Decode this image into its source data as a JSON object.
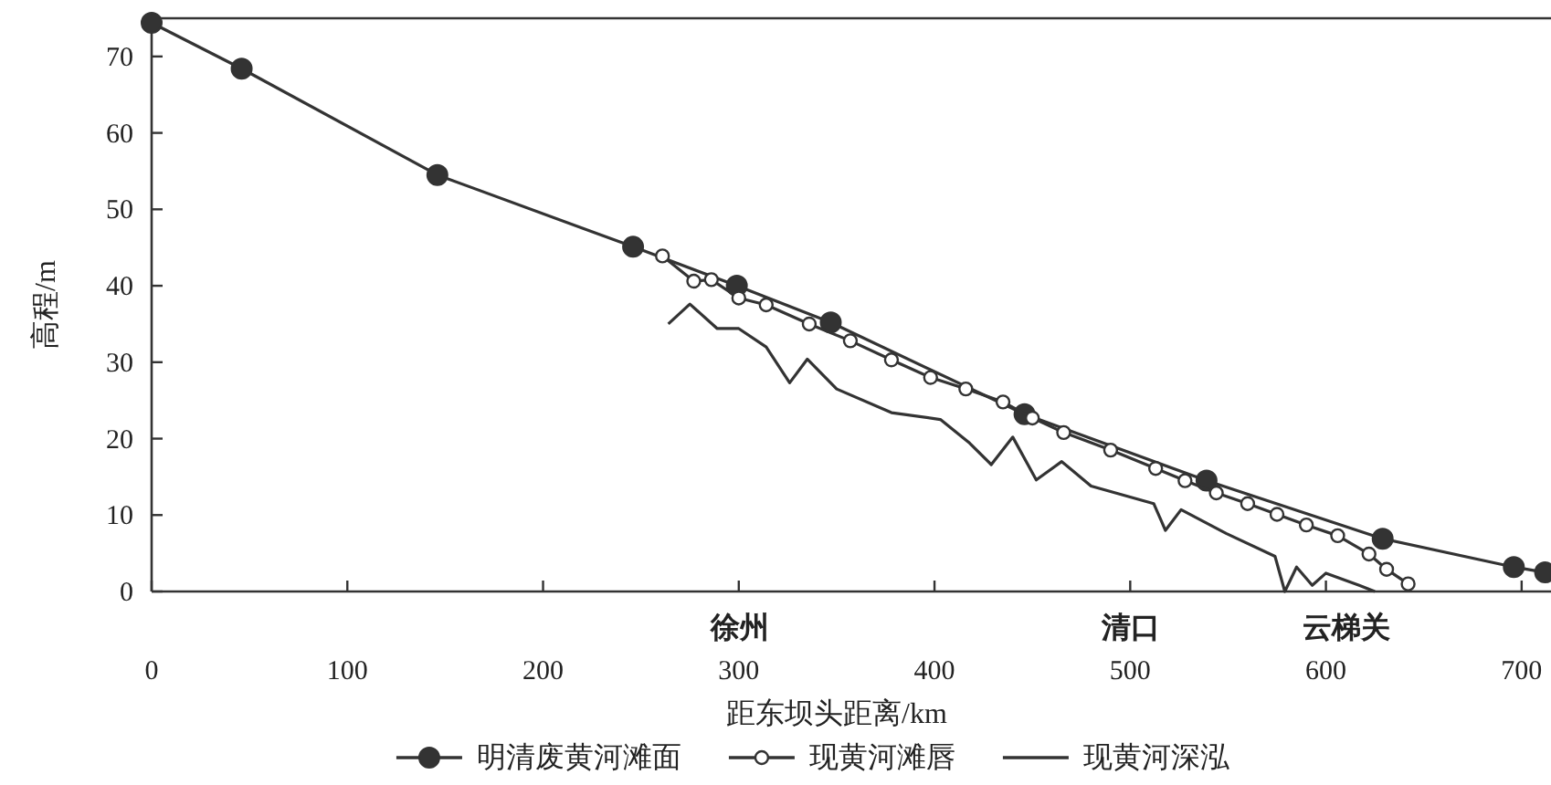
{
  "chart_data": {
    "type": "line",
    "xlabel": "距东坝头距离/km",
    "ylabel": "高程/m",
    "xlim": [
      0,
      715
    ],
    "ylim": [
      0,
      75
    ],
    "xticks": [
      0,
      100,
      200,
      300,
      400,
      500,
      600,
      700
    ],
    "yticks": [
      0,
      10,
      20,
      30,
      40,
      50,
      60,
      70
    ],
    "grid": false,
    "legend": "bottom",
    "annotations": [
      "徐州",
      "清口",
      "云梯关"
    ],
    "series": [
      {
        "name": "明清废黄河滩面",
        "color": "#333333",
        "marker": "circle",
        "x": [
          0,
          46,
          146,
          246,
          299,
          347,
          446,
          539,
          629,
          696,
          712
        ],
        "values": [
          74.4,
          68.4,
          54.5,
          45.1,
          40.0,
          35.2,
          23.2,
          14.5,
          6.9,
          3.2,
          2.5
        ]
      },
      {
        "name": "现黄河滩唇",
        "color": "#333333",
        "marker": "circle_open",
        "x": [
          261,
          277,
          286,
          300,
          314,
          336,
          357,
          378,
          398,
          416,
          435,
          450,
          466,
          490,
          513,
          528,
          544,
          560,
          575,
          590,
          606,
          622,
          631,
          642
        ],
        "values": [
          43.9,
          40.6,
          40.8,
          38.4,
          37.5,
          35.0,
          32.8,
          30.3,
          28.0,
          26.5,
          24.8,
          22.7,
          20.8,
          18.5,
          16.1,
          14.5,
          12.9,
          11.5,
          10.1,
          8.7,
          7.3,
          4.9,
          2.9,
          1.0
        ]
      },
      {
        "name": "现黄河深泓",
        "color": "#333333",
        "marker": "none",
        "x": [
          264,
          275,
          289,
          300,
          314,
          326,
          335,
          350,
          378,
          403,
          418,
          429,
          440,
          452,
          465,
          480,
          512,
          518,
          526,
          549,
          574,
          579,
          585,
          593,
          600,
          617,
          625
        ],
        "values": [
          35.0,
          37.6,
          34.4,
          34.4,
          32.0,
          27.3,
          30.4,
          26.5,
          23.4,
          22.5,
          19.4,
          16.6,
          20.2,
          14.6,
          17.0,
          13.8,
          11.5,
          8.0,
          10.7,
          7.6,
          4.6,
          0,
          3.2,
          0.8,
          2.4,
          0.8,
          0
        ]
      }
    ]
  }
}
